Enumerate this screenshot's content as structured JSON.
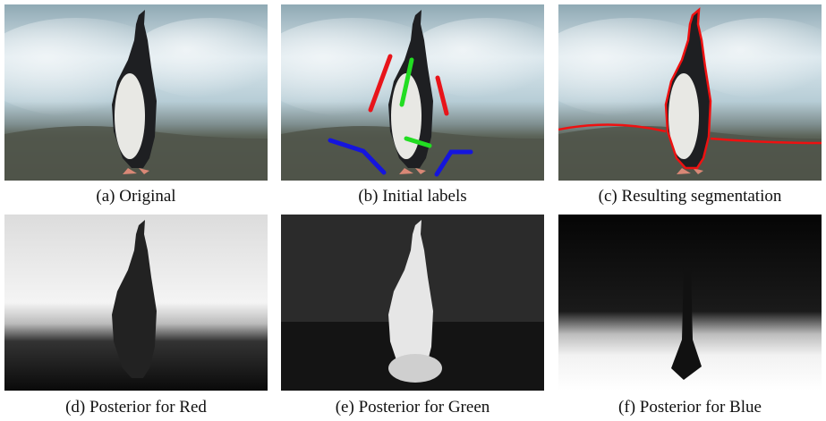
{
  "figure": {
    "panels": [
      {
        "caption": "(a) Original"
      },
      {
        "caption": "(b) Initial labels"
      },
      {
        "caption": "(c) Resulting segmentation"
      },
      {
        "caption": "(d) Posterior for Red"
      },
      {
        "caption": "(e) Posterior for Green"
      },
      {
        "caption": "(f) Posterior for Blue"
      }
    ]
  }
}
